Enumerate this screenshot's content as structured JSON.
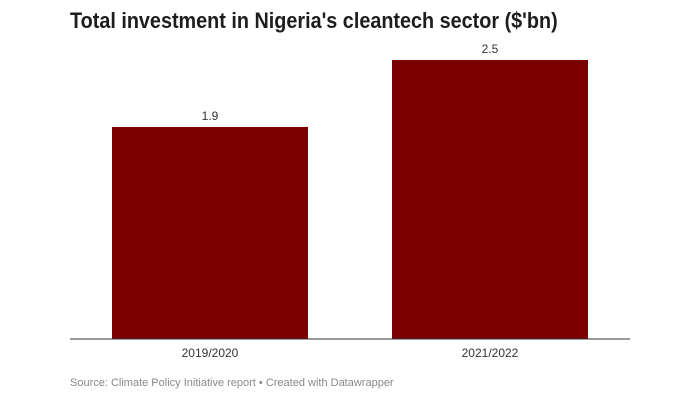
{
  "chart_data": {
    "type": "bar",
    "title": "Total investment in Nigeria's cleantech sector ($'bn)",
    "categories": [
      "2019/2020",
      "2021/2022"
    ],
    "values": [
      1.9,
      2.5
    ],
    "data_labels": [
      "1.9",
      "2.5"
    ],
    "xlabel": "",
    "ylabel": "",
    "ylim": [
      0,
      2.5
    ],
    "grid": false,
    "bar_color": "#7b0000"
  },
  "source": "Source: Climate Policy Initiative report • Created with Datawrapper"
}
